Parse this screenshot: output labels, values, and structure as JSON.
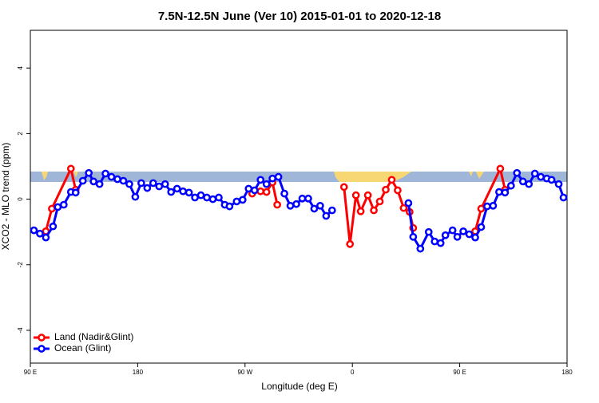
{
  "chart_data": {
    "type": "line",
    "title": "7.5N-12.5N June (Ver 10)   2015-01-01 to 2020-12-18",
    "x_label": "Longitude (deg E)",
    "y_label": "XCO2 - MLO trend (ppm)",
    "xlim": [
      90,
      540
    ],
    "xticks": [
      {
        "value": 90,
        "label": "90 E"
      },
      180,
      {
        "value": 270,
        "label": "90 W"
      },
      {
        "value": 360,
        "label": "0"
      },
      {
        "value": 450,
        "label": "90 E"
      },
      {
        "value": 540,
        "label": "180"
      }
    ],
    "ylim": [
      -5,
      5.15
    ],
    "yticks": [
      -4,
      -2,
      0,
      2,
      4
    ],
    "legend": "bottom-left",
    "series": [
      {
        "name": "Land (Nadir&Glint)",
        "color": "#ff0000",
        "x": [
          103,
          108,
          124,
          128,
          200,
          276,
          283,
          288,
          293,
          297,
          325,
          353,
          358,
          363,
          367,
          373,
          378,
          383,
          388,
          393,
          398,
          403,
          408,
          411,
          440,
          463,
          468,
          484,
          488
        ],
        "values": [
          -0.98,
          -0.29,
          0.93,
          0.29,
          null,
          0.17,
          0.24,
          0.22,
          0.51,
          -0.17,
          null,
          0.37,
          -1.37,
          0.12,
          -0.37,
          0.12,
          -0.34,
          -0.07,
          0.29,
          0.59,
          0.27,
          -0.27,
          -0.39,
          -0.88,
          null,
          -0.98,
          -0.29,
          0.93,
          0.29
        ]
      },
      {
        "name": "Ocean (Glint)",
        "color": "#0000ff",
        "x": [
          93,
          98,
          103,
          109,
          113,
          118,
          124,
          128,
          134,
          139,
          143,
          148,
          153,
          158,
          163,
          168,
          173,
          178,
          183,
          188,
          193,
          198,
          203,
          208,
          213,
          218,
          223,
          228,
          233,
          238,
          243,
          248,
          253,
          257,
          263,
          268,
          273,
          278,
          283,
          288,
          293,
          298,
          303,
          308,
          313,
          318,
          323,
          328,
          333,
          338,
          343,
          375,
          407,
          411,
          417,
          424,
          429,
          434,
          438,
          444,
          448,
          453,
          458,
          463,
          468,
          473,
          478,
          483,
          488,
          493,
          498,
          503,
          508,
          513,
          518,
          523,
          527,
          533,
          537
        ],
        "values": [
          -0.95,
          -1.05,
          -1.17,
          -0.83,
          -0.24,
          -0.17,
          0.22,
          0.2,
          0.56,
          0.8,
          0.54,
          0.46,
          0.78,
          0.68,
          0.61,
          0.56,
          0.46,
          0.07,
          0.49,
          0.34,
          0.49,
          0.39,
          0.46,
          0.22,
          0.32,
          0.24,
          0.2,
          0.05,
          0.12,
          0.05,
          0,
          0.05,
          -0.17,
          -0.22,
          -0.07,
          -0.02,
          0.32,
          0.27,
          0.59,
          0.46,
          0.63,
          0.68,
          0.17,
          -0.2,
          -0.15,
          0.02,
          0.02,
          -0.29,
          -0.2,
          -0.51,
          -0.34,
          null,
          -0.12,
          -1.15,
          -1.51,
          -1.0,
          -1.29,
          -1.34,
          -1.1,
          -0.95,
          -1.15,
          -0.98,
          -1.07,
          -1.17,
          -0.85,
          -0.22,
          -0.2,
          0.22,
          0.2,
          0.41,
          0.8,
          0.54,
          0.46,
          0.78,
          0.68,
          0.63,
          0.59,
          0.46,
          0.05
        ]
      }
    ]
  }
}
